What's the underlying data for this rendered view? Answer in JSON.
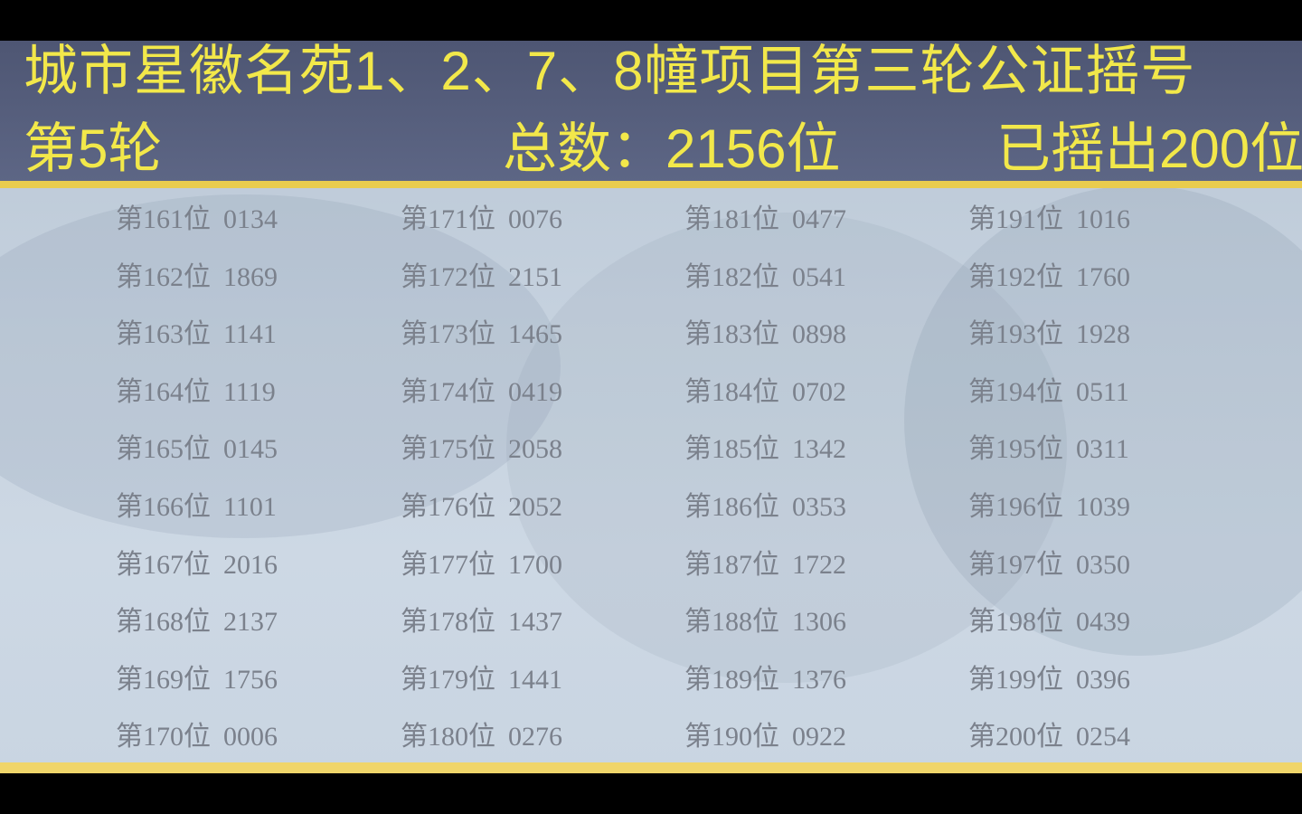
{
  "header": {
    "title": "城市星徽名苑1、2、7、8幢项目第三轮公证摇号",
    "round": "第5轮",
    "total": "总数：2156位",
    "drawn": "已摇出200位"
  },
  "colors": {
    "header_bg": "#565f7c",
    "header_text": "#f2e84a",
    "accent_line": "#e9cc4e",
    "body_text": "#7b818c"
  },
  "columns": [
    [
      {
        "pos": "第161位",
        "num": "0134"
      },
      {
        "pos": "第162位",
        "num": "1869"
      },
      {
        "pos": "第163位",
        "num": "1141"
      },
      {
        "pos": "第164位",
        "num": "1119"
      },
      {
        "pos": "第165位",
        "num": "0145"
      },
      {
        "pos": "第166位",
        "num": "1101"
      },
      {
        "pos": "第167位",
        "num": "2016"
      },
      {
        "pos": "第168位",
        "num": "2137"
      },
      {
        "pos": "第169位",
        "num": "1756"
      },
      {
        "pos": "第170位",
        "num": "0006"
      }
    ],
    [
      {
        "pos": "第171位",
        "num": "0076"
      },
      {
        "pos": "第172位",
        "num": "2151"
      },
      {
        "pos": "第173位",
        "num": "1465"
      },
      {
        "pos": "第174位",
        "num": "0419"
      },
      {
        "pos": "第175位",
        "num": "2058"
      },
      {
        "pos": "第176位",
        "num": "2052"
      },
      {
        "pos": "第177位",
        "num": "1700"
      },
      {
        "pos": "第178位",
        "num": "1437"
      },
      {
        "pos": "第179位",
        "num": "1441"
      },
      {
        "pos": "第180位",
        "num": "0276"
      }
    ],
    [
      {
        "pos": "第181位",
        "num": "0477"
      },
      {
        "pos": "第182位",
        "num": "0541"
      },
      {
        "pos": "第183位",
        "num": "0898"
      },
      {
        "pos": "第184位",
        "num": "0702"
      },
      {
        "pos": "第185位",
        "num": "1342"
      },
      {
        "pos": "第186位",
        "num": "0353"
      },
      {
        "pos": "第187位",
        "num": "1722"
      },
      {
        "pos": "第188位",
        "num": "1306"
      },
      {
        "pos": "第189位",
        "num": "1376"
      },
      {
        "pos": "第190位",
        "num": "0922"
      }
    ],
    [
      {
        "pos": "第191位",
        "num": "1016"
      },
      {
        "pos": "第192位",
        "num": "1760"
      },
      {
        "pos": "第193位",
        "num": "1928"
      },
      {
        "pos": "第194位",
        "num": "0511"
      },
      {
        "pos": "第195位",
        "num": "0311"
      },
      {
        "pos": "第196位",
        "num": "1039"
      },
      {
        "pos": "第197位",
        "num": "0350"
      },
      {
        "pos": "第198位",
        "num": "0439"
      },
      {
        "pos": "第199位",
        "num": "0396"
      },
      {
        "pos": "第200位",
        "num": "0254"
      }
    ]
  ]
}
